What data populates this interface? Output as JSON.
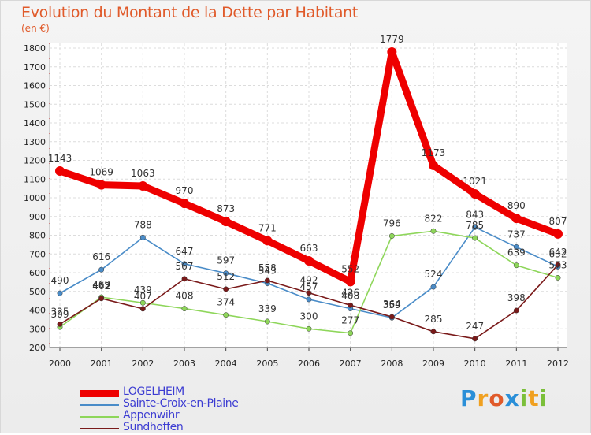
{
  "title": "Evolution du Montant de la Dette par Habitant",
  "unit": "(en €)",
  "brand": {
    "text": "Proxiti",
    "letters": [
      {
        "ch": "P",
        "color": "#2a8fd8"
      },
      {
        "ch": "r",
        "color": "#f0a020"
      },
      {
        "ch": "o",
        "color": "#e05a2a"
      },
      {
        "ch": "x",
        "color": "#2a8fd8"
      },
      {
        "ch": "i",
        "color": "#7bbf3a"
      },
      {
        "ch": "t",
        "color": "#f0a020"
      },
      {
        "ch": "i",
        "color": "#7bbf3a"
      }
    ]
  },
  "chart_data": {
    "type": "line",
    "x": [
      "2000",
      "2001",
      "2002",
      "2003",
      "2004",
      "2005",
      "2006",
      "2007",
      "2008",
      "2009",
      "2010",
      "2011",
      "2012"
    ],
    "ylim": [
      200,
      1800
    ],
    "yticks": [
      "200",
      "300",
      "400",
      "500",
      "600",
      "700",
      "800",
      "900",
      "1000",
      "1100",
      "1200",
      "1300",
      "1400",
      "1500",
      "1600",
      "1700",
      "1800"
    ],
    "grid": true,
    "legend_position": "bottom-left",
    "series": [
      {
        "name": "LOGELHEIM",
        "color": "#ee0000",
        "bold": true,
        "values": [
          1143,
          1069,
          1063,
          970,
          873,
          771,
          663,
          552,
          1779,
          1173,
          1021,
          890,
          807
        ],
        "labels": [
          "1143",
          "1069",
          "1063",
          "970",
          "873",
          "771",
          "663",
          "552",
          "1779",
          "1173",
          "1021",
          "890",
          "807"
        ]
      },
      {
        "name": "Sainte-Croix-en-Plaine",
        "color": "#4a8cc8",
        "bold": false,
        "values": [
          490,
          616,
          788,
          647,
          597,
          543,
          457,
          408,
          359,
          524,
          843,
          737,
          632
        ],
        "labels": [
          "490",
          "616",
          "788",
          "647",
          "597",
          "543",
          "457",
          "408",
          "359",
          "524",
          "843",
          "737",
          "632"
        ]
      },
      {
        "name": "Appenwihr",
        "color": "#8ed65a",
        "bold": false,
        "values": [
          309,
          469,
          439,
          408,
          374,
          339,
          300,
          277,
          796,
          822,
          785,
          639,
          573
        ],
        "labels": [
          "309",
          "469",
          "439",
          "408",
          "374",
          "339",
          "300",
          "277",
          "796",
          "822",
          "785",
          "639",
          "573"
        ]
      },
      {
        "name": "Sundhoffen",
        "color": "#7a1a1a",
        "bold": false,
        "values": [
          325,
          462,
          407,
          567,
          512,
          558,
          492,
          426,
          364,
          285,
          247,
          398,
          642
        ],
        "labels": [
          "325",
          "462",
          "407",
          "567",
          "512",
          "558",
          "492",
          "426",
          "364",
          "285",
          "247",
          "398",
          "642"
        ]
      }
    ]
  }
}
